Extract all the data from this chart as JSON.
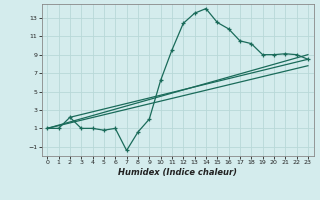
{
  "title": "",
  "xlabel": "Humidex (Indice chaleur)",
  "ylabel": "",
  "bg_color": "#d4eced",
  "line_color": "#1a6b5a",
  "xlim": [
    -0.5,
    23.5
  ],
  "ylim": [
    -2.0,
    14.5
  ],
  "xticks": [
    0,
    1,
    2,
    3,
    4,
    5,
    6,
    7,
    8,
    9,
    10,
    11,
    12,
    13,
    14,
    15,
    16,
    17,
    18,
    19,
    20,
    21,
    22,
    23
  ],
  "yticks": [
    -1,
    1,
    3,
    5,
    7,
    9,
    11,
    13
  ],
  "grid_color": "#b8d8d8",
  "humidex_curve_x": [
    0,
    1,
    2,
    3,
    4,
    5,
    6,
    7,
    8,
    9,
    10,
    11,
    12,
    13,
    14,
    15,
    16,
    17,
    18,
    19,
    20,
    21,
    22,
    23
  ],
  "humidex_curve_y": [
    1.0,
    1.0,
    2.2,
    1.0,
    1.0,
    0.8,
    1.0,
    -1.4,
    0.6,
    2.0,
    6.2,
    9.5,
    12.4,
    13.5,
    14.0,
    12.5,
    11.8,
    10.5,
    10.2,
    9.0,
    9.0,
    9.1,
    9.0,
    8.5
  ],
  "line1_x": [
    0,
    23
  ],
  "line1_y": [
    1.0,
    7.8
  ],
  "line2_x": [
    0,
    23
  ],
  "line2_y": [
    1.0,
    9.0
  ],
  "line3_x": [
    2,
    23
  ],
  "line3_y": [
    2.2,
    8.5
  ]
}
